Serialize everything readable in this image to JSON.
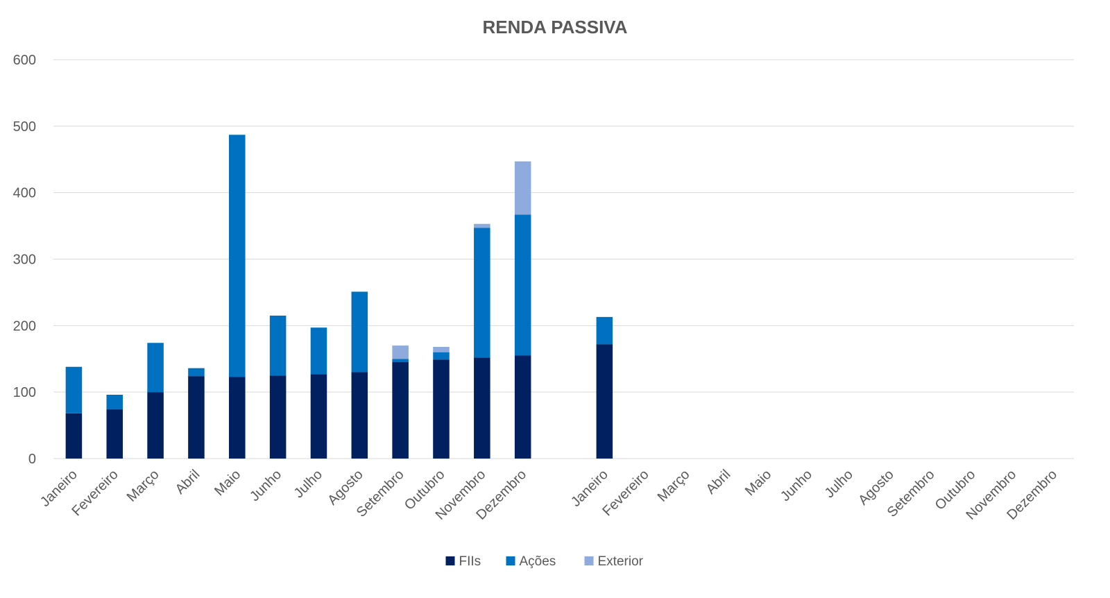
{
  "chart_data": {
    "type": "bar",
    "stacked": true,
    "title": "RENDA PASSIVA",
    "xlabel": "",
    "ylabel": "",
    "ylim": [
      0,
      600
    ],
    "yticks": [
      "0",
      "100",
      "200",
      "300",
      "400",
      "500",
      "600"
    ],
    "grid": true,
    "legend_position": "bottom",
    "categories": [
      "Janeiro",
      "Fevereiro",
      "Março",
      "Abril",
      "Maio",
      "Junho",
      "Julho",
      "Agosto",
      "Setembro",
      "Outubro",
      "Novembro",
      "Dezembro",
      "",
      "Janeiro",
      "Fevereiro",
      "Março",
      "Abril",
      "Maio",
      "Junho",
      "Julho",
      "Agosto",
      "Setembro",
      "Outubro",
      "Novembro",
      "Dezembro"
    ],
    "series": [
      {
        "name": "FIIs",
        "color": "#002060",
        "values": [
          68,
          74,
          100,
          124,
          123,
          125,
          127,
          130,
          145,
          149,
          152,
          155,
          null,
          172,
          null,
          null,
          null,
          null,
          null,
          null,
          null,
          null,
          null,
          null,
          null
        ]
      },
      {
        "name": "Ações",
        "color": "#0070c0",
        "values": [
          70,
          22,
          74,
          12,
          364,
          90,
          70,
          121,
          5,
          11,
          195,
          212,
          null,
          41,
          null,
          null,
          null,
          null,
          null,
          null,
          null,
          null,
          null,
          null,
          null
        ]
      },
      {
        "name": "Exterior",
        "color": "#8faadc",
        "values": [
          0,
          0,
          0,
          0,
          0,
          0,
          0,
          0,
          20,
          8,
          6,
          80,
          null,
          0,
          null,
          null,
          null,
          null,
          null,
          null,
          null,
          null,
          null,
          null,
          null
        ]
      }
    ]
  }
}
